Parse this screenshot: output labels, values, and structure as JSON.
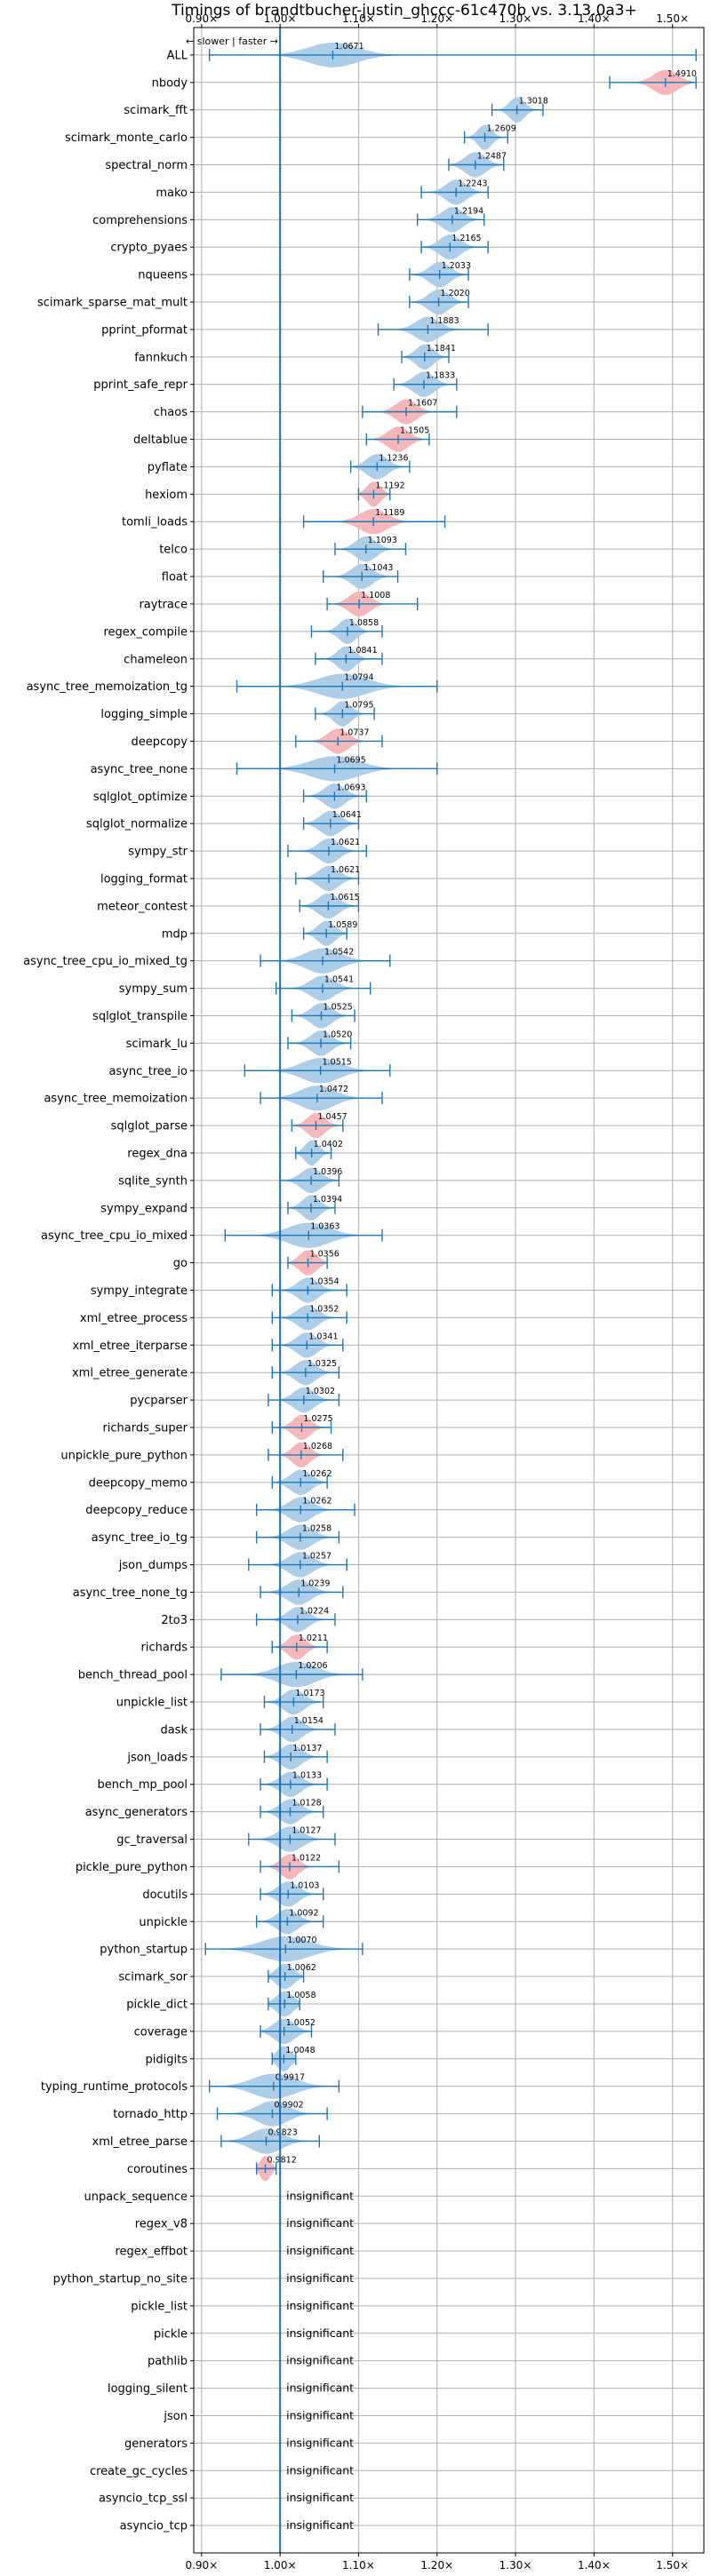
{
  "colors": {
    "faster": "#a9cbe8",
    "slower": "#f6b3b7",
    "errorbar": "#1f77b4",
    "baseline": "#1f6fb4",
    "grid": "#b0b0b0",
    "axis": "#000000"
  },
  "chart_data": {
    "type": "violin",
    "title": "Timings of brandtbucher-justin_ghccc-61c470b vs. 3.13.0a3+",
    "direction_label": "← slower | faster →",
    "xlim": [
      0.89,
      1.54
    ],
    "xticks": [
      0.9,
      1.0,
      1.1,
      1.2,
      1.3,
      1.4,
      1.5
    ],
    "xtick_labels": [
      "0.90×",
      "1.00×",
      "1.10×",
      "1.20×",
      "1.30×",
      "1.40×",
      "1.50×"
    ],
    "baseline": 1.0,
    "grid": true,
    "insignificant_label": "insignificant",
    "benchmarks": [
      {
        "name": "ALL",
        "value": 1.0671,
        "label": "1.0671",
        "lo": 0.91,
        "hi": 1.53,
        "width": 0.07,
        "slower": false
      },
      {
        "name": "nbody",
        "value": 1.491,
        "label": "1.4910",
        "lo": 1.42,
        "hi": 1.53,
        "width": 0.035,
        "slower": true
      },
      {
        "name": "scimark_fft",
        "value": 1.3018,
        "label": "1.3018",
        "lo": 1.27,
        "hi": 1.335,
        "width": 0.022,
        "slower": false
      },
      {
        "name": "scimark_monte_carlo",
        "value": 1.2609,
        "label": "1.2609",
        "lo": 1.235,
        "hi": 1.29,
        "width": 0.02,
        "slower": false
      },
      {
        "name": "spectral_norm",
        "value": 1.2487,
        "label": "1.2487",
        "lo": 1.215,
        "hi": 1.285,
        "width": 0.03,
        "slower": false
      },
      {
        "name": "mako",
        "value": 1.2243,
        "label": "1.2243",
        "lo": 1.18,
        "hi": 1.265,
        "width": 0.03,
        "slower": false
      },
      {
        "name": "comprehensions",
        "value": 1.2194,
        "label": "1.2194",
        "lo": 1.175,
        "hi": 1.26,
        "width": 0.03,
        "slower": false
      },
      {
        "name": "crypto_pyaes",
        "value": 1.2165,
        "label": "1.2165",
        "lo": 1.18,
        "hi": 1.265,
        "width": 0.03,
        "slower": false
      },
      {
        "name": "nqueens",
        "value": 1.2033,
        "label": "1.2033",
        "lo": 1.165,
        "hi": 1.24,
        "width": 0.03,
        "slower": false
      },
      {
        "name": "scimark_sparse_mat_mult",
        "value": 1.202,
        "label": "1.2020",
        "lo": 1.165,
        "hi": 1.24,
        "width": 0.03,
        "slower": false
      },
      {
        "name": "pprint_pformat",
        "value": 1.1883,
        "label": "1.1883",
        "lo": 1.125,
        "hi": 1.265,
        "width": 0.035,
        "slower": false
      },
      {
        "name": "fannkuch",
        "value": 1.1841,
        "label": "1.1841",
        "lo": 1.155,
        "hi": 1.215,
        "width": 0.025,
        "slower": false
      },
      {
        "name": "pprint_safe_repr",
        "value": 1.1833,
        "label": "1.1833",
        "lo": 1.145,
        "hi": 1.225,
        "width": 0.03,
        "slower": false
      },
      {
        "name": "chaos",
        "value": 1.1607,
        "label": "1.1607",
        "lo": 1.105,
        "hi": 1.225,
        "width": 0.03,
        "slower": true
      },
      {
        "name": "deltablue",
        "value": 1.1505,
        "label": "1.1505",
        "lo": 1.11,
        "hi": 1.19,
        "width": 0.03,
        "slower": true
      },
      {
        "name": "pyflate",
        "value": 1.1236,
        "label": "1.1236",
        "lo": 1.09,
        "hi": 1.165,
        "width": 0.03,
        "slower": false
      },
      {
        "name": "hexiom",
        "value": 1.1192,
        "label": "1.1192",
        "lo": 1.1,
        "hi": 1.14,
        "width": 0.02,
        "slower": true
      },
      {
        "name": "tomli_loads",
        "value": 1.1189,
        "label": "1.1189",
        "lo": 1.03,
        "hi": 1.21,
        "width": 0.04,
        "slower": true
      },
      {
        "name": "telco",
        "value": 1.1093,
        "label": "1.1093",
        "lo": 1.07,
        "hi": 1.16,
        "width": 0.03,
        "slower": false
      },
      {
        "name": "float",
        "value": 1.1043,
        "label": "1.1043",
        "lo": 1.055,
        "hi": 1.15,
        "width": 0.03,
        "slower": false
      },
      {
        "name": "raytrace",
        "value": 1.1008,
        "label": "1.1008",
        "lo": 1.06,
        "hi": 1.175,
        "width": 0.03,
        "slower": true
      },
      {
        "name": "regex_compile",
        "value": 1.0858,
        "label": "1.0858",
        "lo": 1.04,
        "hi": 1.13,
        "width": 0.025,
        "slower": false
      },
      {
        "name": "chameleon",
        "value": 1.0841,
        "label": "1.0841",
        "lo": 1.045,
        "hi": 1.13,
        "width": 0.025,
        "slower": false
      },
      {
        "name": "async_tree_memoization_tg",
        "value": 1.0794,
        "label": "1.0794",
        "lo": 0.945,
        "hi": 1.2,
        "width": 0.07,
        "slower": false
      },
      {
        "name": "logging_simple",
        "value": 1.0795,
        "label": "1.0795",
        "lo": 1.045,
        "hi": 1.12,
        "width": 0.025,
        "slower": false
      },
      {
        "name": "deepcopy",
        "value": 1.0737,
        "label": "1.0737",
        "lo": 1.02,
        "hi": 1.13,
        "width": 0.03,
        "slower": true
      },
      {
        "name": "async_tree_none",
        "value": 1.0695,
        "label": "1.0695",
        "lo": 0.945,
        "hi": 1.2,
        "width": 0.07,
        "slower": false
      },
      {
        "name": "sqlglot_optimize",
        "value": 1.0693,
        "label": "1.0693",
        "lo": 1.03,
        "hi": 1.11,
        "width": 0.03,
        "slower": false
      },
      {
        "name": "sqlglot_normalize",
        "value": 1.0641,
        "label": "1.0641",
        "lo": 1.03,
        "hi": 1.1,
        "width": 0.03,
        "slower": false
      },
      {
        "name": "sympy_str",
        "value": 1.0621,
        "label": "1.0621",
        "lo": 1.01,
        "hi": 1.11,
        "width": 0.03,
        "slower": false
      },
      {
        "name": "logging_format",
        "value": 1.0621,
        "label": "1.0621",
        "lo": 1.02,
        "hi": 1.1,
        "width": 0.03,
        "slower": false
      },
      {
        "name": "meteor_contest",
        "value": 1.0615,
        "label": "1.0615",
        "lo": 1.025,
        "hi": 1.1,
        "width": 0.03,
        "slower": false
      },
      {
        "name": "mdp",
        "value": 1.0589,
        "label": "1.0589",
        "lo": 1.03,
        "hi": 1.085,
        "width": 0.025,
        "slower": false
      },
      {
        "name": "async_tree_cpu_io_mixed_tg",
        "value": 1.0542,
        "label": "1.0542",
        "lo": 0.975,
        "hi": 1.14,
        "width": 0.05,
        "slower": false
      },
      {
        "name": "sympy_sum",
        "value": 1.0541,
        "label": "1.0541",
        "lo": 0.995,
        "hi": 1.115,
        "width": 0.035,
        "slower": false
      },
      {
        "name": "sqlglot_transpile",
        "value": 1.0525,
        "label": "1.0525",
        "lo": 1.015,
        "hi": 1.095,
        "width": 0.03,
        "slower": false
      },
      {
        "name": "scimark_lu",
        "value": 1.052,
        "label": "1.0520",
        "lo": 1.01,
        "hi": 1.09,
        "width": 0.03,
        "slower": false
      },
      {
        "name": "async_tree_io",
        "value": 1.0515,
        "label": "1.0515",
        "lo": 0.955,
        "hi": 1.14,
        "width": 0.055,
        "slower": false
      },
      {
        "name": "async_tree_memoization",
        "value": 1.0472,
        "label": "1.0472",
        "lo": 0.975,
        "hi": 1.13,
        "width": 0.05,
        "slower": false
      },
      {
        "name": "sqlglot_parse",
        "value": 1.0457,
        "label": "1.0457",
        "lo": 1.015,
        "hi": 1.08,
        "width": 0.025,
        "slower": true
      },
      {
        "name": "regex_dna",
        "value": 1.0402,
        "label": "1.0402",
        "lo": 1.02,
        "hi": 1.065,
        "width": 0.02,
        "slower": false
      },
      {
        "name": "sqlite_synth",
        "value": 1.0396,
        "label": "1.0396",
        "lo": 1.0,
        "hi": 1.075,
        "width": 0.03,
        "slower": false
      },
      {
        "name": "sympy_expand",
        "value": 1.0394,
        "label": "1.0394",
        "lo": 1.01,
        "hi": 1.07,
        "width": 0.025,
        "slower": false
      },
      {
        "name": "async_tree_cpu_io_mixed",
        "value": 1.0363,
        "label": "1.0363",
        "lo": 0.93,
        "hi": 1.13,
        "width": 0.06,
        "slower": false
      },
      {
        "name": "go",
        "value": 1.0356,
        "label": "1.0356",
        "lo": 1.01,
        "hi": 1.06,
        "width": 0.025,
        "slower": true
      },
      {
        "name": "sympy_integrate",
        "value": 1.0354,
        "label": "1.0354",
        "lo": 0.99,
        "hi": 1.085,
        "width": 0.03,
        "slower": false
      },
      {
        "name": "xml_etree_process",
        "value": 1.0352,
        "label": "1.0352",
        "lo": 0.99,
        "hi": 1.085,
        "width": 0.03,
        "slower": false
      },
      {
        "name": "xml_etree_iterparse",
        "value": 1.0341,
        "label": "1.0341",
        "lo": 0.99,
        "hi": 1.08,
        "width": 0.03,
        "slower": false
      },
      {
        "name": "xml_etree_generate",
        "value": 1.0325,
        "label": "1.0325",
        "lo": 0.99,
        "hi": 1.075,
        "width": 0.03,
        "slower": false
      },
      {
        "name": "pycparser",
        "value": 1.0302,
        "label": "1.0302",
        "lo": 0.985,
        "hi": 1.075,
        "width": 0.03,
        "slower": false
      },
      {
        "name": "richards_super",
        "value": 1.0275,
        "label": "1.0275",
        "lo": 0.99,
        "hi": 1.065,
        "width": 0.025,
        "slower": true
      },
      {
        "name": "unpickle_pure_python",
        "value": 1.0268,
        "label": "1.0268",
        "lo": 0.985,
        "hi": 1.08,
        "width": 0.025,
        "slower": true
      },
      {
        "name": "deepcopy_memo",
        "value": 1.0262,
        "label": "1.0262",
        "lo": 0.99,
        "hi": 1.06,
        "width": 0.03,
        "slower": false
      },
      {
        "name": "deepcopy_reduce",
        "value": 1.0262,
        "label": "1.0262",
        "lo": 0.97,
        "hi": 1.095,
        "width": 0.035,
        "slower": false
      },
      {
        "name": "async_tree_io_tg",
        "value": 1.0258,
        "label": "1.0258",
        "lo": 0.97,
        "hi": 1.075,
        "width": 0.035,
        "slower": false
      },
      {
        "name": "json_dumps",
        "value": 1.0257,
        "label": "1.0257",
        "lo": 0.96,
        "hi": 1.085,
        "width": 0.035,
        "slower": false
      },
      {
        "name": "async_tree_none_tg",
        "value": 1.0239,
        "label": "1.0239",
        "lo": 0.975,
        "hi": 1.08,
        "width": 0.035,
        "slower": false
      },
      {
        "name": "2to3",
        "value": 1.0224,
        "label": "1.0224",
        "lo": 0.97,
        "hi": 1.07,
        "width": 0.03,
        "slower": false
      },
      {
        "name": "richards",
        "value": 1.0211,
        "label": "1.0211",
        "lo": 0.99,
        "hi": 1.06,
        "width": 0.025,
        "slower": true
      },
      {
        "name": "bench_thread_pool",
        "value": 1.0206,
        "label": "1.0206",
        "lo": 0.925,
        "hi": 1.105,
        "width": 0.055,
        "slower": false
      },
      {
        "name": "unpickle_list",
        "value": 1.0173,
        "label": "1.0173",
        "lo": 0.98,
        "hi": 1.055,
        "width": 0.03,
        "slower": false
      },
      {
        "name": "dask",
        "value": 1.0154,
        "label": "1.0154",
        "lo": 0.975,
        "hi": 1.07,
        "width": 0.03,
        "slower": false
      },
      {
        "name": "json_loads",
        "value": 1.0137,
        "label": "1.0137",
        "lo": 0.98,
        "hi": 1.06,
        "width": 0.03,
        "slower": false
      },
      {
        "name": "bench_mp_pool",
        "value": 1.0133,
        "label": "1.0133",
        "lo": 0.975,
        "hi": 1.06,
        "width": 0.03,
        "slower": false
      },
      {
        "name": "async_generators",
        "value": 1.0128,
        "label": "1.0128",
        "lo": 0.975,
        "hi": 1.055,
        "width": 0.03,
        "slower": false
      },
      {
        "name": "gc_traversal",
        "value": 1.0127,
        "label": "1.0127",
        "lo": 0.96,
        "hi": 1.07,
        "width": 0.035,
        "slower": false
      },
      {
        "name": "pickle_pure_python",
        "value": 1.0122,
        "label": "1.0122",
        "lo": 0.975,
        "hi": 1.075,
        "width": 0.025,
        "slower": true
      },
      {
        "name": "docutils",
        "value": 1.0103,
        "label": "1.0103",
        "lo": 0.975,
        "hi": 1.055,
        "width": 0.03,
        "slower": false
      },
      {
        "name": "unpickle",
        "value": 1.0092,
        "label": "1.0092",
        "lo": 0.97,
        "hi": 1.055,
        "width": 0.03,
        "slower": false
      },
      {
        "name": "python_startup",
        "value": 1.007,
        "label": "1.0070",
        "lo": 0.905,
        "hi": 1.105,
        "width": 0.07,
        "slower": false
      },
      {
        "name": "scimark_sor",
        "value": 1.0062,
        "label": "1.0062",
        "lo": 0.985,
        "hi": 1.03,
        "width": 0.025,
        "slower": false
      },
      {
        "name": "pickle_dict",
        "value": 1.0058,
        "label": "1.0058",
        "lo": 0.985,
        "hi": 1.025,
        "width": 0.025,
        "slower": false
      },
      {
        "name": "coverage",
        "value": 1.0052,
        "label": "1.0052",
        "lo": 0.975,
        "hi": 1.04,
        "width": 0.03,
        "slower": false
      },
      {
        "name": "pidigits",
        "value": 1.0048,
        "label": "1.0048",
        "lo": 0.99,
        "hi": 1.02,
        "width": 0.02,
        "slower": false
      },
      {
        "name": "typing_runtime_protocols",
        "value": 0.9917,
        "label": "0.9917",
        "lo": 0.91,
        "hi": 1.075,
        "width": 0.06,
        "slower": false
      },
      {
        "name": "tornado_http",
        "value": 0.9902,
        "label": "0.9902",
        "lo": 0.92,
        "hi": 1.06,
        "width": 0.045,
        "slower": false
      },
      {
        "name": "xml_etree_parse",
        "value": 0.9823,
        "label": "0.9823",
        "lo": 0.925,
        "hi": 1.05,
        "width": 0.045,
        "slower": false
      },
      {
        "name": "coroutines",
        "value": 0.9812,
        "label": "0.9812",
        "lo": 0.97,
        "hi": 0.995,
        "width": 0.015,
        "slower": true
      },
      {
        "name": "unpack_sequence",
        "insignificant": true
      },
      {
        "name": "regex_v8",
        "insignificant": true
      },
      {
        "name": "regex_effbot",
        "insignificant": true
      },
      {
        "name": "python_startup_no_site",
        "insignificant": true
      },
      {
        "name": "pickle_list",
        "insignificant": true
      },
      {
        "name": "pickle",
        "insignificant": true
      },
      {
        "name": "pathlib",
        "insignificant": true
      },
      {
        "name": "logging_silent",
        "insignificant": true
      },
      {
        "name": "json",
        "insignificant": true
      },
      {
        "name": "generators",
        "insignificant": true
      },
      {
        "name": "create_gc_cycles",
        "insignificant": true
      },
      {
        "name": "asyncio_tcp_ssl",
        "insignificant": true
      },
      {
        "name": "asyncio_tcp",
        "insignificant": true
      }
    ]
  }
}
